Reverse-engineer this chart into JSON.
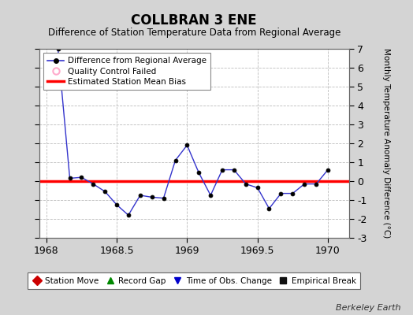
{
  "title": "COLLBRAN 3 ENE",
  "subtitle": "Difference of Station Temperature Data from Regional Average",
  "ylabel_right": "Monthly Temperature Anomaly Difference (°C)",
  "background_color": "#d4d4d4",
  "plot_bg_color": "#ffffff",
  "bias_value": 0.0,
  "x_data": [
    1968.083,
    1968.167,
    1968.25,
    1968.333,
    1968.417,
    1968.5,
    1968.583,
    1968.667,
    1968.75,
    1968.833,
    1968.917,
    1969.0,
    1969.083,
    1969.167,
    1969.25,
    1969.333,
    1969.417,
    1969.5,
    1969.583,
    1969.667,
    1969.75,
    1969.833,
    1969.917,
    1970.0
  ],
  "y_data": [
    7.0,
    0.15,
    0.2,
    -0.15,
    -0.55,
    -1.25,
    -1.8,
    -0.75,
    -0.85,
    -0.9,
    1.1,
    1.9,
    0.45,
    -0.75,
    0.6,
    0.6,
    -0.15,
    -0.35,
    -1.45,
    -0.65,
    -0.65,
    -0.15,
    -0.15,
    0.6
  ],
  "xlim": [
    1967.95,
    1970.15
  ],
  "ylim": [
    -3,
    7
  ],
  "yticks": [
    -3,
    -2,
    -1,
    0,
    1,
    2,
    3,
    4,
    5,
    6,
    7
  ],
  "xticks": [
    1968,
    1968.5,
    1969,
    1969.5,
    1970
  ],
  "xtick_labels": [
    "1968",
    "1968.5",
    "1969",
    "1969.5",
    "1970"
  ],
  "line_color": "#3333cc",
  "marker_color": "#000000",
  "marker_face": "#000000",
  "bias_color": "#ff0000",
  "watermark": "Berkeley Earth",
  "legend1_entries": [
    {
      "label": "Difference from Regional Average",
      "color": "#3333cc",
      "marker": "o",
      "linestyle": "-"
    },
    {
      "label": "Quality Control Failed",
      "color": "#ffaacc",
      "marker": "o",
      "linestyle": "none"
    },
    {
      "label": "Estimated Station Mean Bias",
      "color": "#ff0000",
      "marker": "none",
      "linestyle": "-"
    }
  ],
  "legend2_entries": [
    {
      "label": "Station Move",
      "color": "#cc0000",
      "marker": "D"
    },
    {
      "label": "Record Gap",
      "color": "#008800",
      "marker": "^"
    },
    {
      "label": "Time of Obs. Change",
      "color": "#0000cc",
      "marker": "v"
    },
    {
      "label": "Empirical Break",
      "color": "#111111",
      "marker": "s"
    }
  ]
}
